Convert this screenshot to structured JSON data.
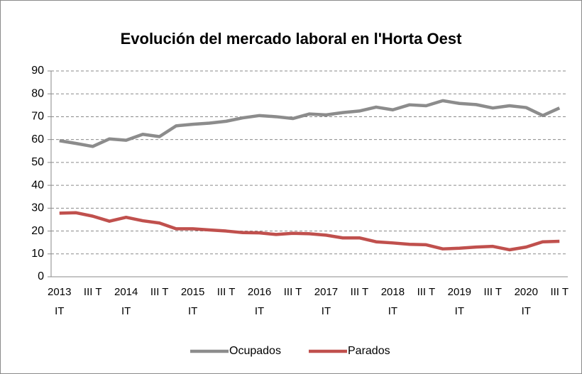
{
  "chart_data": {
    "type": "line",
    "title": "Evolución del mercado laboral en l'Horta Oest",
    "categories": [
      "2013 IT",
      null,
      "III T",
      null,
      "2014 IT",
      null,
      "III T",
      null,
      "2015 IT",
      null,
      "III T",
      null,
      "2016 IT",
      null,
      "III T",
      null,
      "2017 IT",
      null,
      "III T",
      null,
      "2018 IT",
      null,
      "III T",
      null,
      "2019 IT",
      null,
      "III T",
      null,
      "2020 IT",
      null,
      "III T"
    ],
    "series": [
      {
        "name": "Ocupados",
        "color": "#8c8c8c",
        "values": [
          59.5,
          58.3,
          57,
          60.3,
          59.7,
          62.3,
          61.3,
          66,
          66.7,
          67.2,
          68,
          69.5,
          70.5,
          70,
          69.2,
          71.2,
          70.8,
          71.8,
          72.5,
          74.2,
          73,
          75.2,
          74.8,
          77,
          75.8,
          75.3,
          73.8,
          74.8,
          74,
          70.5,
          73.8
        ]
      },
      {
        "name": "Parados",
        "color": "#c0504d",
        "values": [
          27.8,
          28,
          26.5,
          24.3,
          26,
          24.5,
          23.5,
          21,
          21,
          20.5,
          20,
          19.3,
          19.2,
          18.5,
          19,
          18.8,
          18.2,
          17,
          17,
          15.3,
          14.8,
          14.2,
          14,
          12.2,
          12.5,
          13,
          13.3,
          11.8,
          13,
          15.3,
          15.5
        ]
      }
    ],
    "ylim": [
      0,
      90
    ],
    "yticks": [
      0,
      10,
      20,
      30,
      40,
      50,
      60,
      70,
      80,
      90
    ],
    "grid": true,
    "legend": "bottom"
  }
}
